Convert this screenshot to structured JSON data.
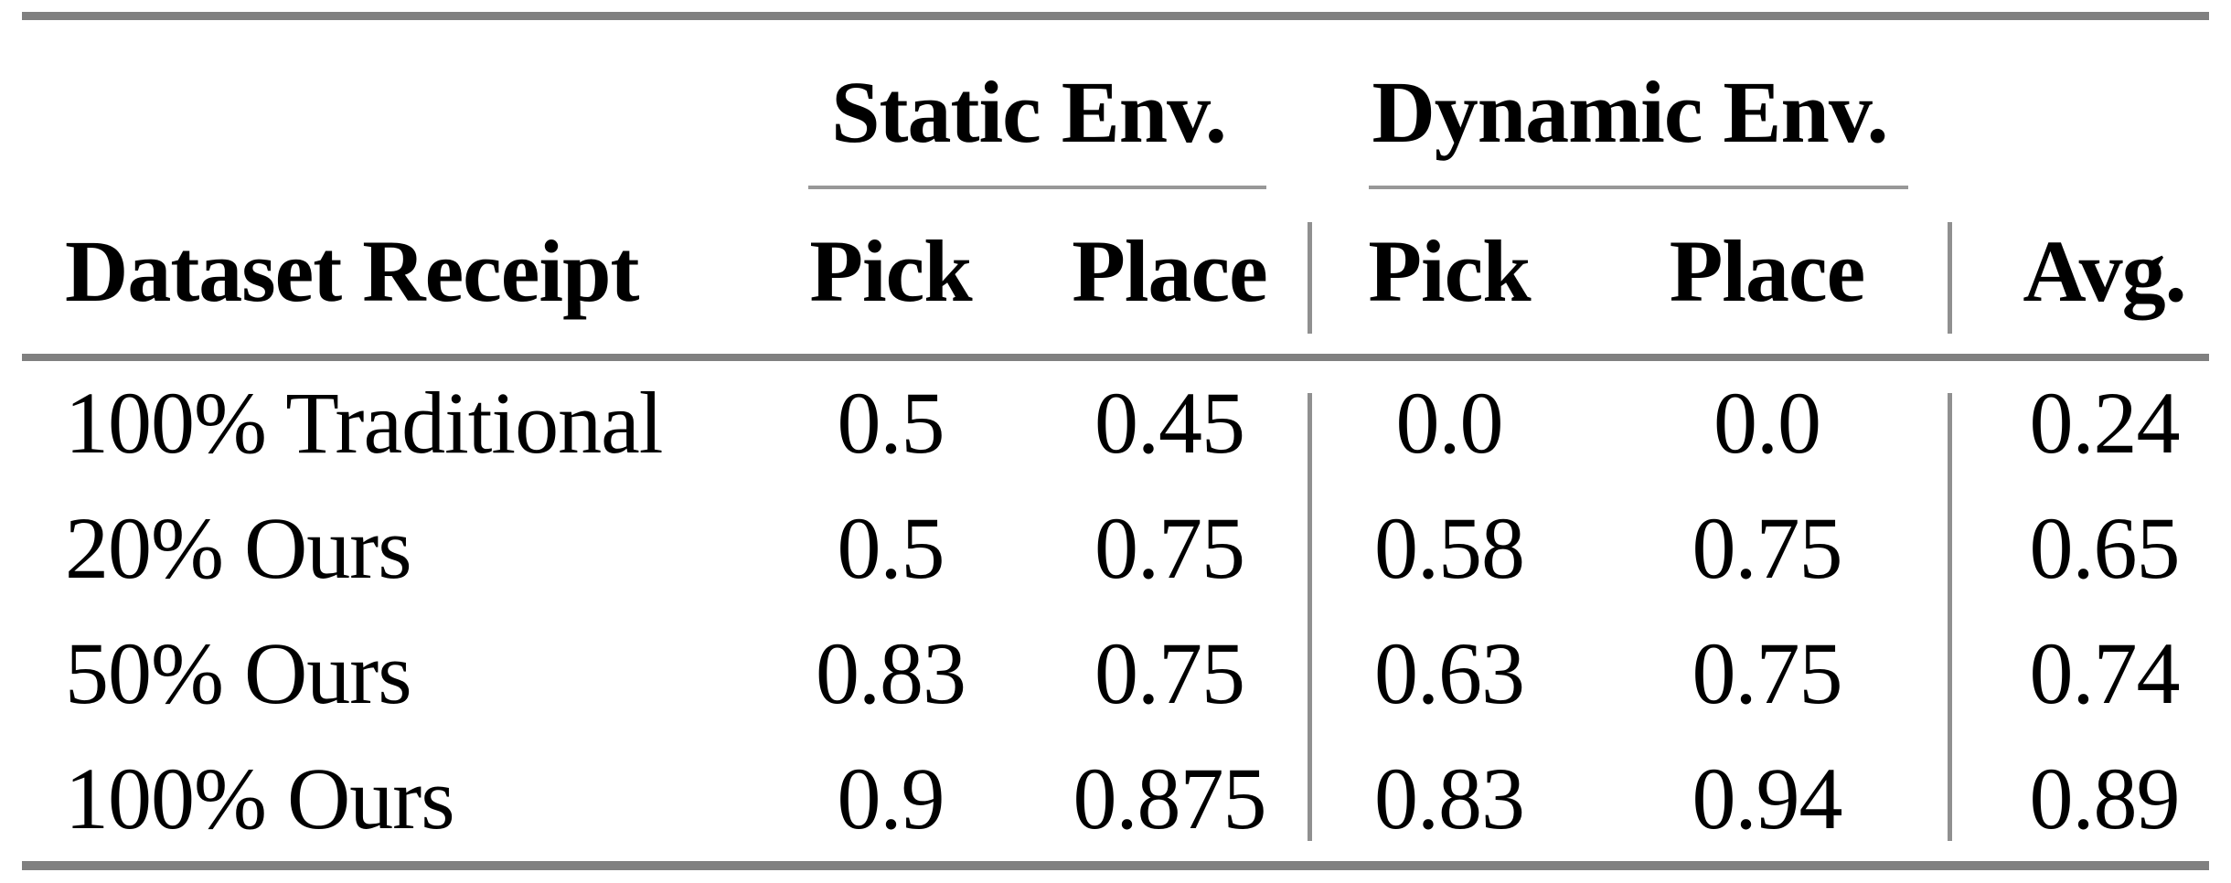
{
  "table": {
    "group_headers": [
      {
        "label": "Static Env."
      },
      {
        "label": "Dynamic Env."
      }
    ],
    "header": {
      "row_label": "Dataset Receipt",
      "static_pick": "Pick",
      "static_place": "Place",
      "dynamic_pick": "Pick",
      "dynamic_place": "Place",
      "avg": "Avg."
    },
    "rows": [
      {
        "label": "100% Traditional",
        "static_pick": "0.5",
        "static_place": "0.45",
        "dynamic_pick": "0.0",
        "dynamic_place": "0.0",
        "avg": "0.24"
      },
      {
        "label": "20% Ours",
        "static_pick": "0.5",
        "static_place": "0.75",
        "dynamic_pick": "0.58",
        "dynamic_place": "0.75",
        "avg": "0.65"
      },
      {
        "label": "50% Ours",
        "static_pick": "0.83",
        "static_place": "0.75",
        "dynamic_pick": "0.63",
        "dynamic_place": "0.75",
        "avg": "0.74"
      },
      {
        "label": "100% Ours",
        "static_pick": "0.9",
        "static_place": "0.875",
        "dynamic_pick": "0.83",
        "dynamic_place": "0.94",
        "avg": "0.89"
      }
    ],
    "colors": {
      "heavy_rule_gray": "#808080",
      "light_rule_gray": "#989898",
      "separator_gray": "#909090",
      "text": "#000000",
      "background": "#ffffff"
    }
  },
  "chart_data": {
    "type": "table",
    "title": "",
    "column_groups": [
      "",
      "Static Env.",
      "Static Env.",
      "Dynamic Env.",
      "Dynamic Env.",
      ""
    ],
    "columns": [
      "Dataset Receipt",
      "Pick",
      "Place",
      "Pick",
      "Place",
      "Avg."
    ],
    "rows": [
      [
        "100% Traditional",
        0.5,
        0.45,
        0.0,
        0.0,
        0.24
      ],
      [
        "20% Ours",
        0.5,
        0.75,
        0.58,
        0.75,
        0.65
      ],
      [
        "50% Ours",
        0.83,
        0.75,
        0.63,
        0.75,
        0.74
      ],
      [
        "100% Ours",
        0.9,
        0.875,
        0.83,
        0.94,
        0.89
      ]
    ]
  }
}
